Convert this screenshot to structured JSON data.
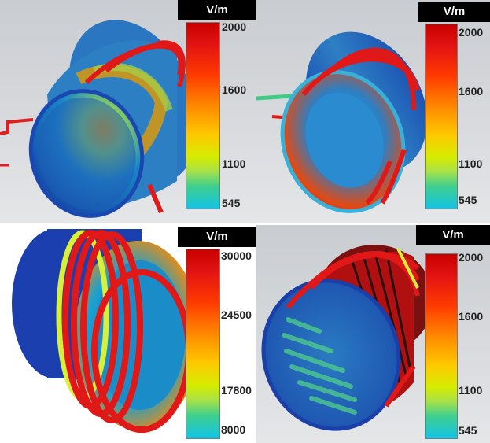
{
  "panels": [
    {
      "unit": "V/m",
      "ticks": [
        "2000",
        "1600",
        "1100",
        "545"
      ]
    },
    {
      "unit": "V/m",
      "ticks": [
        "2000",
        "1600",
        "1100",
        "545"
      ]
    },
    {
      "unit": "V/m",
      "ticks": [
        "30000",
        "24500",
        "17800",
        "8000"
      ]
    },
    {
      "unit": "V/m",
      "ticks": [
        "2000",
        "1600",
        "1100",
        "545"
      ]
    }
  ],
  "colors": {
    "colormap": [
      "#c80000",
      "#ff3a00",
      "#ff8a00",
      "#ffc800",
      "#d6ec00",
      "#3fcf8e",
      "#12c3e6"
    ],
    "coil": "#e01818",
    "cylinder_low": "#1a4fb0",
    "ground_plane": "#d9dbde"
  }
}
